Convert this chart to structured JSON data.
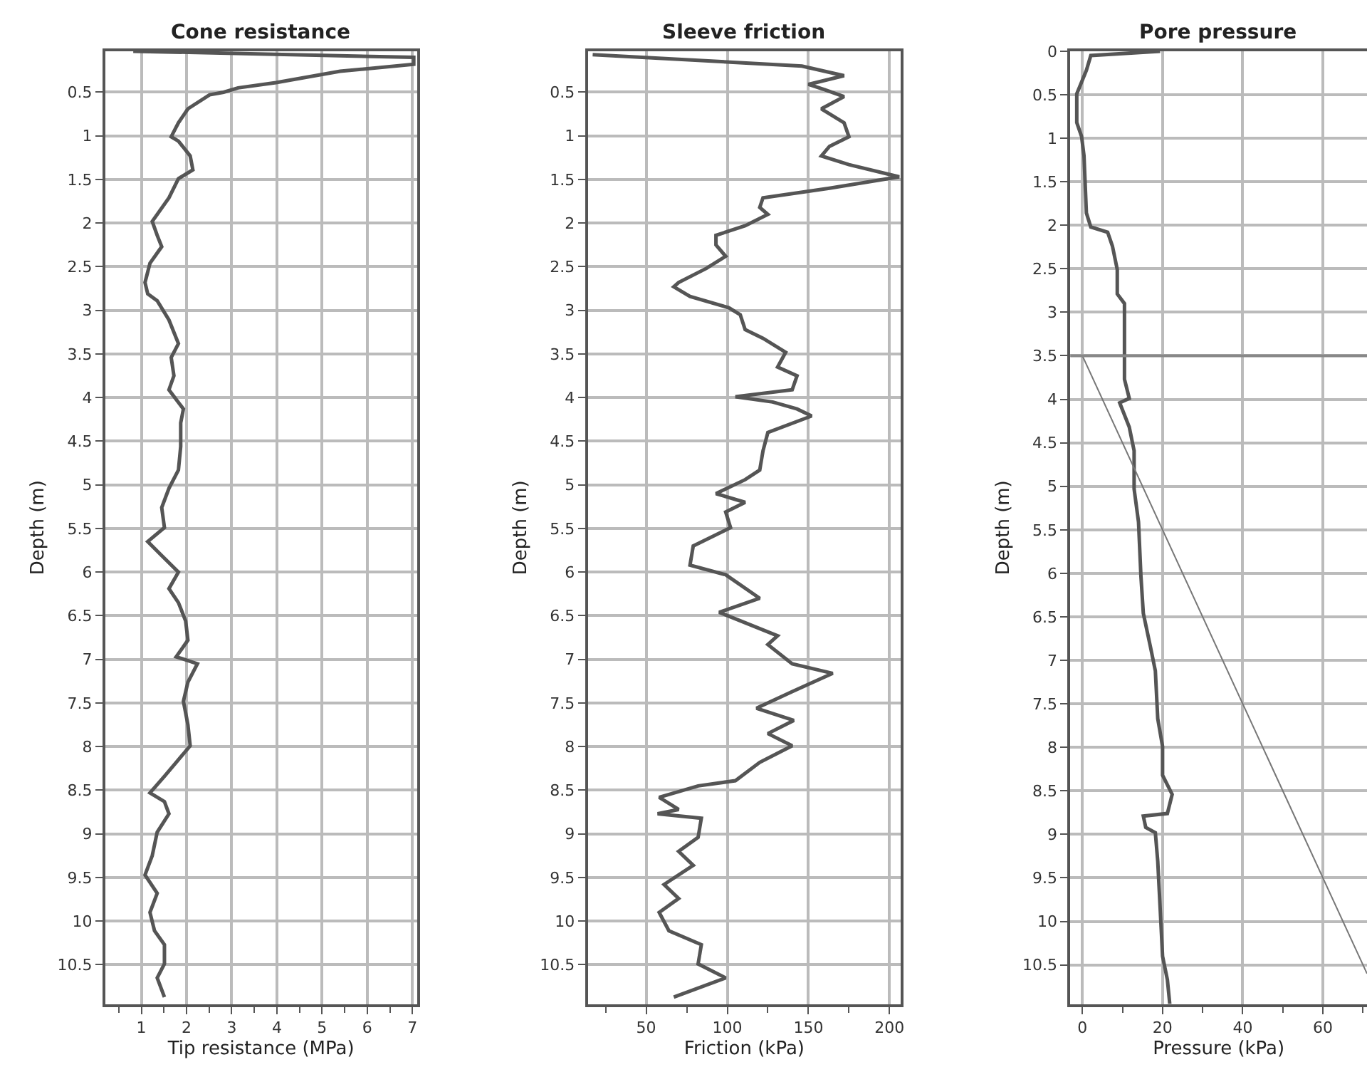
{
  "chart_data": [
    {
      "type": "line",
      "title": "Cone resistance",
      "xlabel": "Tip resistance (MPa)",
      "ylabel": "Depth (m)",
      "orientation": "horizontal",
      "grid": true,
      "xlim": [
        0.2,
        7.1
      ],
      "ylim": [
        10.95,
        0.03
      ],
      "xticks": [
        {
          "value": 0.5,
          "label": null
        },
        1,
        {
          "value": 1.5,
          "label": null
        },
        2,
        {
          "value": 2.5,
          "label": null
        },
        3,
        {
          "value": 3.5,
          "label": null
        },
        4,
        {
          "value": 4.5,
          "label": null
        },
        5,
        {
          "value": 5.5,
          "label": null
        },
        6,
        {
          "value": 6.5,
          "label": null
        },
        7
      ],
      "yticks": [
        0.5,
        1,
        1.5,
        2,
        2.5,
        3,
        3.5,
        4,
        4.5,
        5,
        5.5,
        6,
        6.5,
        7,
        7.5,
        8,
        8.5,
        9,
        9.5,
        10,
        10.5
      ],
      "series": [
        {
          "color": "#555555",
          "x": [
            0.03,
            0.1,
            0.18,
            0.26,
            0.39,
            0.45,
            0.5,
            0.53,
            0.69,
            0.85,
            1.01,
            1.06,
            1.23,
            1.39,
            1.49,
            1.71,
            1.98,
            2.14,
            2.27,
            2.46,
            2.68,
            2.81,
            2.89,
            3.11,
            3.38,
            3.54,
            3.75,
            3.91,
            4.13,
            4.29,
            4.56,
            4.83,
            5.04,
            5.26,
            5.49,
            5.65,
            5.81,
            6.0,
            6.19,
            6.35,
            6.56,
            6.78,
            6.97,
            7.05,
            7.26,
            7.48,
            7.75,
            7.99,
            8.18,
            8.34,
            8.53,
            8.63,
            8.77,
            8.98,
            9.25,
            9.47,
            9.68,
            9.9,
            10.11,
            10.27,
            10.49,
            10.65,
            10.87
          ],
          "values": [
            0.82,
            7.03,
            7.03,
            5.4,
            3.98,
            3.14,
            2.82,
            2.51,
            2.03,
            1.82,
            1.66,
            1.82,
            2.08,
            2.14,
            1.82,
            1.61,
            1.24,
            1.35,
            1.45,
            1.19,
            1.08,
            1.14,
            1.35,
            1.61,
            1.82,
            1.66,
            1.72,
            1.61,
            1.93,
            1.87,
            1.87,
            1.82,
            1.61,
            1.45,
            1.51,
            1.14,
            1.45,
            1.82,
            1.61,
            1.82,
            1.98,
            2.03,
            1.77,
            2.24,
            2.03,
            1.93,
            2.03,
            2.08,
            1.77,
            1.51,
            1.19,
            1.51,
            1.61,
            1.35,
            1.24,
            1.08,
            1.35,
            1.19,
            1.29,
            1.51,
            1.51,
            1.35,
            1.51
          ]
        }
      ]
    },
    {
      "type": "line",
      "title": "Sleeve friction",
      "xlabel": "Friction (kPa)",
      "ylabel": "Depth (m)",
      "orientation": "horizontal",
      "grid": true,
      "xlim": [
        14,
        207
      ],
      "ylim": [
        10.95,
        0.03
      ],
      "xticks": [
        {
          "value": 25,
          "label": null
        },
        50,
        {
          "value": 75,
          "label": null
        },
        100,
        {
          "value": 125,
          "label": null
        },
        150,
        {
          "value": 175,
          "label": null
        },
        200
      ],
      "yticks": [
        0.5,
        1,
        1.5,
        2,
        2.5,
        3,
        3.5,
        4,
        4.5,
        5,
        5.5,
        6,
        6.5,
        7,
        7.5,
        8,
        8.5,
        9,
        9.5,
        10,
        10.5
      ],
      "series": [
        {
          "color": "#555555",
          "x": [
            0.07,
            0.2,
            0.31,
            0.41,
            0.47,
            0.55,
            0.69,
            0.85,
            1.01,
            1.12,
            1.23,
            1.33,
            1.47,
            1.6,
            1.71,
            1.82,
            1.9,
            2.03,
            2.14,
            2.25,
            2.38,
            2.52,
            2.68,
            2.73,
            2.84,
            2.97,
            3.05,
            3.22,
            3.32,
            3.48,
            3.65,
            3.75,
            3.91,
            3.99,
            4.05,
            4.13,
            4.21,
            4.4,
            4.61,
            4.83,
            4.94,
            5.1,
            5.2,
            5.31,
            5.49,
            5.7,
            5.92,
            6.03,
            6.3,
            6.46,
            6.73,
            6.83,
            7.05,
            7.16,
            7.37,
            7.56,
            7.7,
            7.85,
            7.99,
            8.18,
            8.39,
            8.45,
            8.58,
            8.72,
            8.77,
            8.82,
            9.04,
            9.2,
            9.36,
            9.58,
            9.74,
            9.9,
            10.11,
            10.27,
            10.49,
            10.65,
            10.87
          ],
          "values": [
            17,
            146,
            172,
            150,
            160,
            172,
            158,
            172,
            175,
            163,
            158,
            175,
            206,
            163,
            122,
            120,
            125,
            111,
            93,
            93,
            99,
            87,
            70,
            67,
            77,
            101,
            108,
            111,
            122,
            136,
            131,
            143,
            140,
            105,
            128,
            143,
            152,
            125,
            122,
            120,
            111,
            93,
            111,
            99,
            102,
            79,
            77,
            99,
            120,
            95,
            131,
            125,
            140,
            165,
            140,
            118,
            141,
            125,
            140,
            120,
            105,
            82,
            58,
            70,
            57,
            84,
            82,
            70,
            79,
            61,
            70,
            58,
            64,
            84,
            82,
            99,
            67
          ]
        }
      ]
    },
    {
      "type": "line",
      "title": "Pore pressure",
      "xlabel": "Pressure (kPa)",
      "ylabel": "Depth (m)",
      "orientation": "horizontal",
      "grid": true,
      "xlim": [
        -3,
        71
      ],
      "ylim": [
        10.95,
        0
      ],
      "xticks": [
        0,
        {
          "value": 10,
          "label": null
        },
        20,
        {
          "value": 30,
          "label": null
        },
        40,
        {
          "value": 50,
          "label": null
        },
        60,
        {
          "value": 70,
          "label": null
        }
      ],
      "yticks": [
        0,
        0.5,
        1,
        1.5,
        2,
        2.5,
        3,
        3.5,
        4,
        4.5,
        5,
        5.5,
        6,
        6.5,
        7,
        7.5,
        8,
        8.5,
        9,
        9.5,
        10,
        10.5
      ],
      "ref_lines": [
        {
          "axis": "y",
          "value": 3.5,
          "color": "#888888"
        }
      ],
      "series": [
        {
          "color": "#555555",
          "x": [
            0,
            0.05,
            0.22,
            0.49,
            0.82,
            0.98,
            1.2,
            1.86,
            2.02,
            2.08,
            2.24,
            2.51,
            2.79,
            2.9,
            3.22,
            3.77,
            3.99,
            4.04,
            4.32,
            4.59,
            5.03,
            5.41,
            6.03,
            6.46,
            6.85,
            7.12,
            7.67,
            7.99,
            8.32,
            8.54,
            8.76,
            8.79,
            8.92,
            8.98,
            9.31,
            9.85,
            10.4,
            10.67,
            10.95
          ],
          "values": [
            19.4,
            2.1,
            1,
            -1.4,
            -1.4,
            -0.2,
            0.4,
            1,
            2.1,
            6.3,
            7.5,
            8.7,
            8.7,
            10.5,
            10.5,
            10.5,
            11.7,
            9.3,
            11.7,
            12.9,
            12.9,
            14,
            14.6,
            15.2,
            17,
            18.2,
            18.8,
            20,
            20,
            22.4,
            21.2,
            15.2,
            15.8,
            18.2,
            18.8,
            19.4,
            20,
            21.2,
            21.8
          ]
        },
        {
          "color": "#777777",
          "x": [
            3.5,
            10.6
          ],
          "values": [
            0,
            71
          ]
        }
      ]
    }
  ]
}
